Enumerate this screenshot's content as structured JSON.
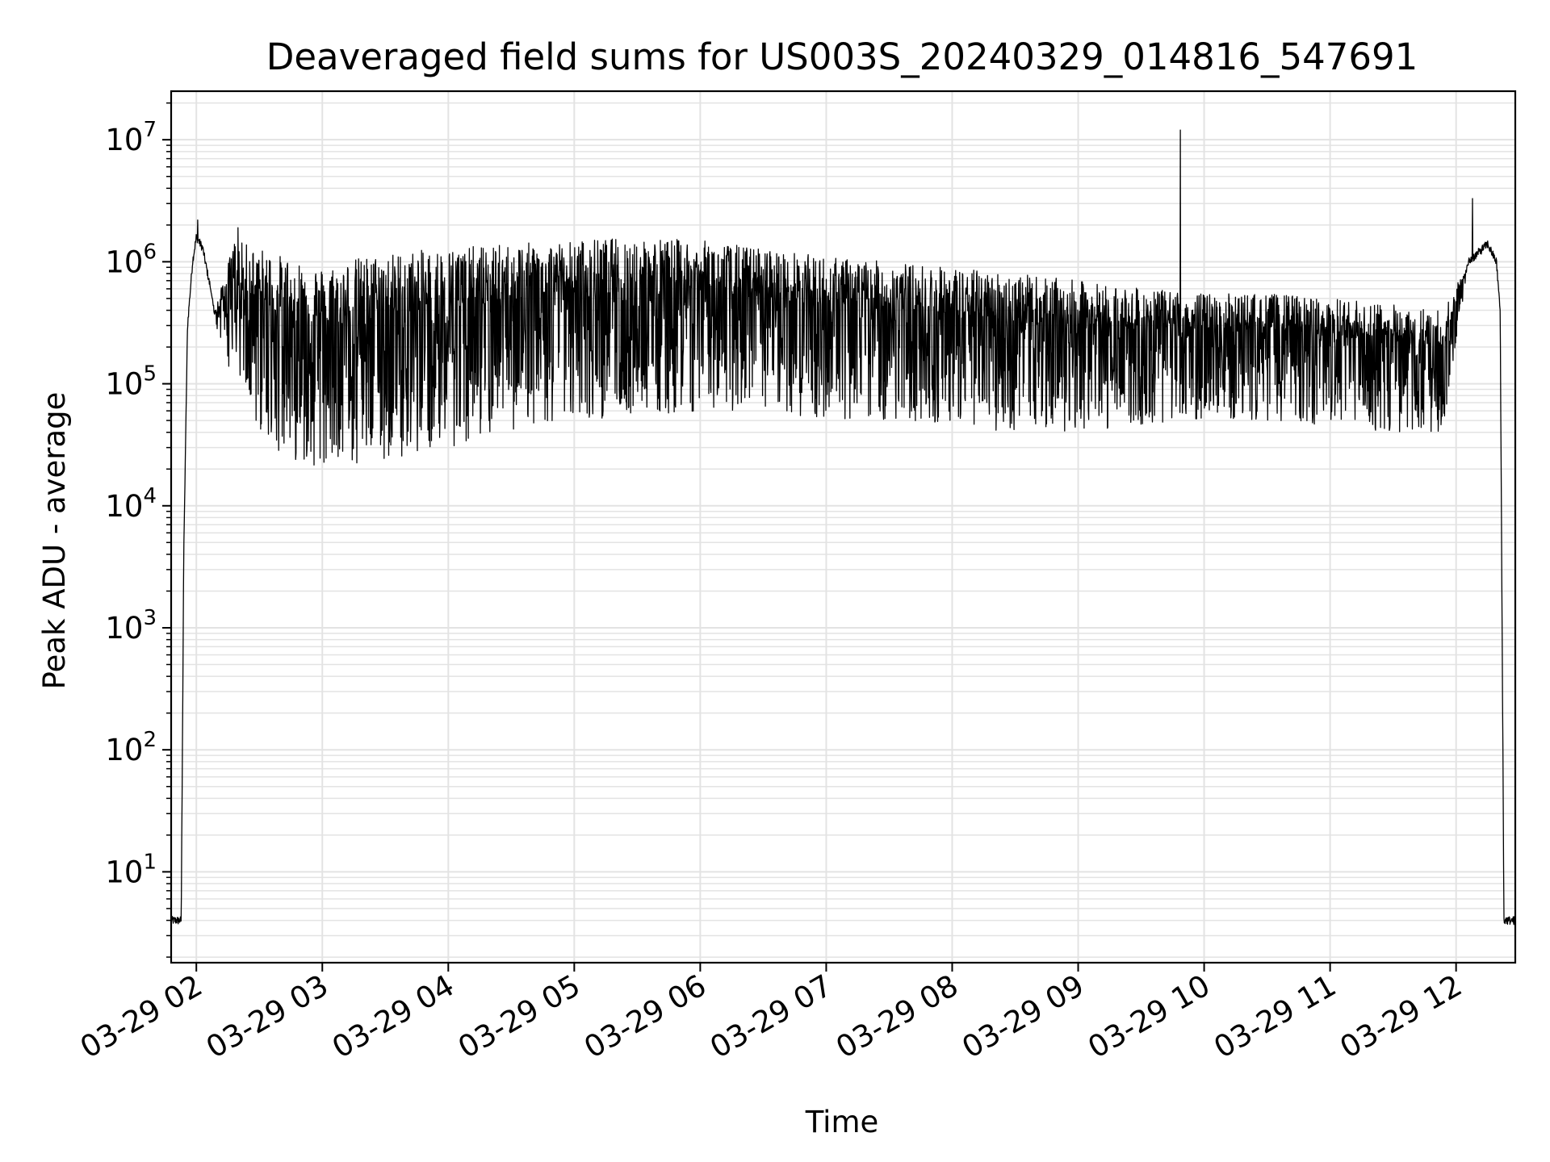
{
  "chart_data": {
    "type": "line",
    "title": "Deaveraged field sums for US003S_20240329_014816_547691",
    "xlabel": "Time",
    "ylabel": "Peak ADU - average",
    "yscale": "log",
    "xlim_hours": [
      1.8,
      12.47
    ],
    "ylim": [
      1.8,
      25000000
    ],
    "grid": true,
    "legend": "none",
    "colors": {
      "line": "#000000",
      "grid": "#e3e3e3",
      "background": "#ffffff"
    },
    "x_ticks": [
      {
        "hour": 2,
        "label": "03-29 02"
      },
      {
        "hour": 3,
        "label": "03-29 03"
      },
      {
        "hour": 4,
        "label": "03-29 04"
      },
      {
        "hour": 5,
        "label": "03-29 05"
      },
      {
        "hour": 6,
        "label": "03-29 06"
      },
      {
        "hour": 7,
        "label": "03-29 07"
      },
      {
        "hour": 8,
        "label": "03-29 08"
      },
      {
        "hour": 9,
        "label": "03-29 09"
      },
      {
        "hour": 10,
        "label": "03-29 10"
      },
      {
        "hour": 11,
        "label": "03-29 11"
      },
      {
        "hour": 12,
        "label": "03-29 12"
      }
    ],
    "y_ticks": [
      {
        "value": 10,
        "base": "10",
        "exp": "1"
      },
      {
        "value": 100,
        "base": "10",
        "exp": "2"
      },
      {
        "value": 1000,
        "base": "10",
        "exp": "3"
      },
      {
        "value": 10000,
        "base": "10",
        "exp": "4"
      },
      {
        "value": 100000,
        "base": "10",
        "exp": "5"
      },
      {
        "value": 1000000,
        "base": "10",
        "exp": "6"
      },
      {
        "value": 10000000,
        "base": "10",
        "exp": "7"
      }
    ],
    "series": [
      {
        "description": "peak field-sum signal over time",
        "x_hours": [
          1.8,
          1.88,
          1.9,
          1.93,
          1.97,
          2.0,
          2.05,
          2.1,
          2.15,
          2.3,
          2.5,
          2.7,
          2.9,
          3.0,
          3.3,
          3.6,
          4.0,
          4.5,
          5.0,
          5.5,
          6.0,
          6.5,
          7.0,
          7.5,
          8.0,
          8.5,
          9.0,
          9.5,
          10.0,
          10.5,
          11.0,
          11.5,
          11.9,
          12.1,
          12.25,
          12.32,
          12.35,
          12.38,
          12.47
        ],
        "upper_envelope": [
          4,
          4,
          4000,
          300000,
          1000000,
          1600000,
          1300000,
          700000,
          400000,
          1500000,
          1300000,
          1100000,
          1000000,
          900000,
          1100000,
          1200000,
          1300000,
          1400000,
          1500000,
          1600000,
          1500000,
          1300000,
          1100000,
          1000000,
          900000,
          800000,
          700000,
          600000,
          550000,
          550000,
          500000,
          450000,
          400000,
          1000000,
          1400000,
          1000000,
          400000,
          4,
          4
        ],
        "lower_envelope": [
          4,
          4,
          4000,
          300000,
          1000000,
          1600000,
          1300000,
          700000,
          300000,
          100000,
          40000,
          25000,
          22000,
          20000,
          20000,
          25000,
          30000,
          40000,
          50000,
          55000,
          60000,
          55000,
          50000,
          50000,
          45000,
          40000,
          40000,
          45000,
          50000,
          50000,
          45000,
          40000,
          40000,
          1000000,
          1400000,
          1000000,
          400000,
          4,
          4
        ],
        "spikes": [
          {
            "hour": 2.01,
            "value": 2200000
          },
          {
            "hour": 2.33,
            "value": 1900000
          },
          {
            "hour": 9.81,
            "value": 12000000
          },
          {
            "hour": 12.13,
            "value": 3300000
          }
        ]
      }
    ]
  }
}
